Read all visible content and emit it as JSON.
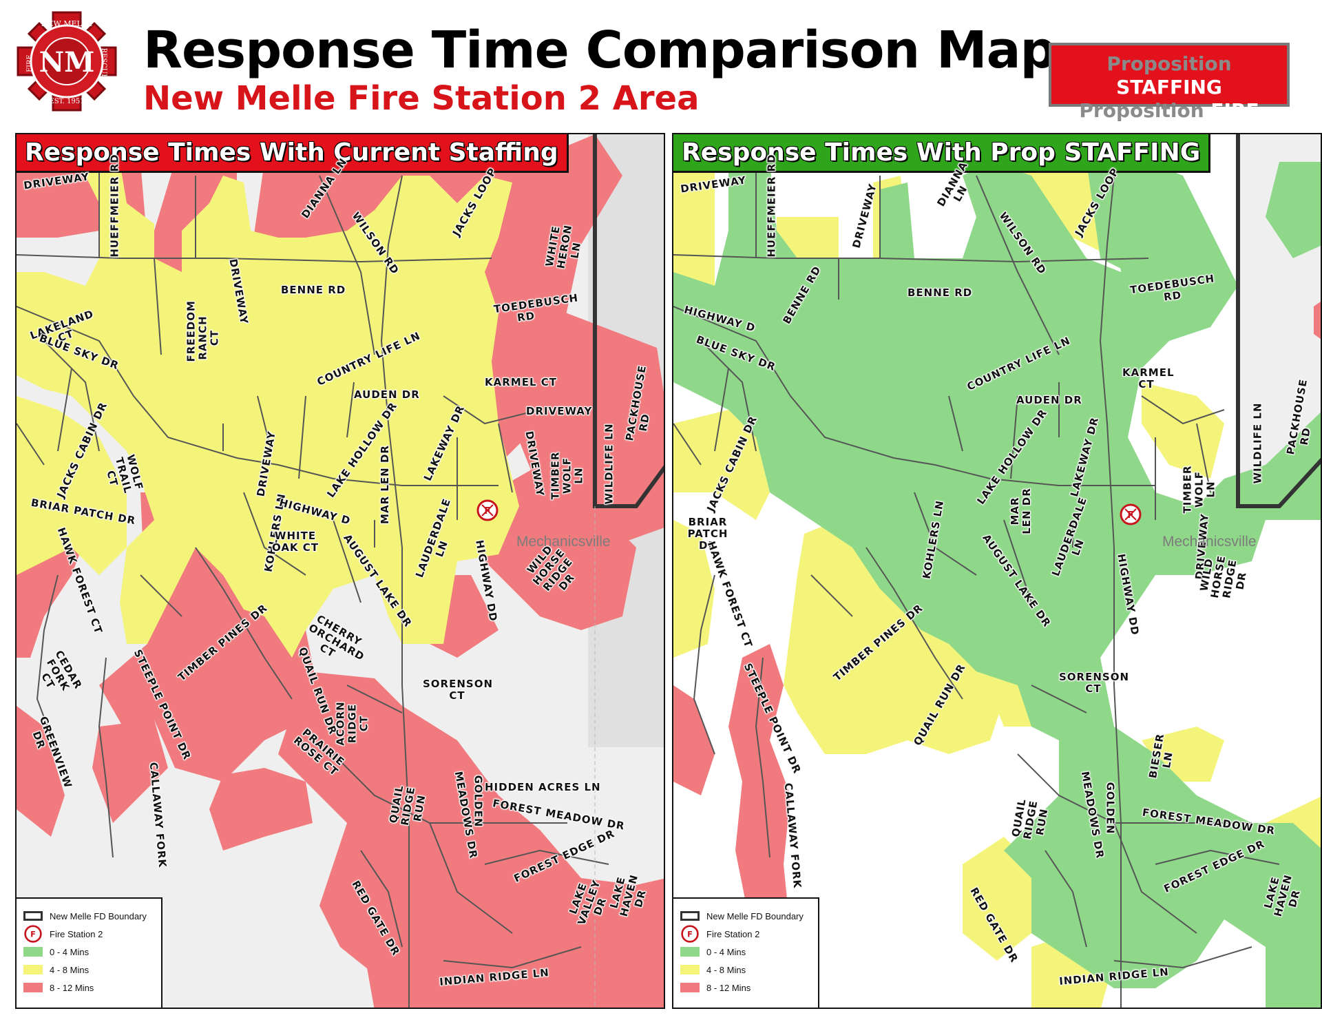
{
  "header": {
    "logo": {
      "top_text": "NEW MELLE",
      "left_text": "FIRE",
      "right_text": "RESCUE",
      "monogram": "NM",
      "bottom_text": "EST. 1951"
    },
    "title": "Response Time Comparison Map",
    "subtitle": "New Melle Fire Station 2 Area",
    "badge": {
      "line1_prefix": "Proposition",
      "line1_emphasis": "STAFFING",
      "line2_prefix": "Proposition",
      "line2_emphasis": "FIRE"
    }
  },
  "colors": {
    "zone_0_4": "#8fd88a",
    "zone_4_8": "#f4f47a",
    "zone_8_12": "#f07a7e",
    "left_header": "#e3111b",
    "right_header": "#2fa51c",
    "road": "#555555",
    "boundary": "#333333"
  },
  "panels": {
    "left": {
      "title": "Response Times With Current Staffing",
      "town_label": "Mechanicsville"
    },
    "right": {
      "title": "Response Times With Prop STAFFING",
      "town_label": "Mechanicsville"
    }
  },
  "streets": {
    "driveway": "DRIVEWAY",
    "hueffmeier": "HUEFFMEIER RD",
    "dianna": "DIANNA LN",
    "jacks_loop": "JACKS LOOP",
    "white_heron": "WHITE HERON LN",
    "wilson": "WILSON RD",
    "benne": "BENNE RD",
    "toedebusch": "TOEDEBUSCH RD",
    "lakeland": "LAKELAND CT",
    "freedom_ranch": "FREEDOM RANCH CT",
    "blue_sky": "BLUE SKY DR",
    "country_life": "COUNTRY LIFE LN",
    "karmel": "KARMEL CT",
    "auden": "AUDEN DR",
    "packhouse": "PACKHOUSE RD",
    "jacks_cabin": "JACKS CABIN DR",
    "wolf_trail": "WOLF TRAIL CT",
    "lake_hollow": "LAKE HOLLOW DR",
    "lakeway": "LAKEWAY DR",
    "timber_wolf": "TIMBER WOLF LN",
    "wildlife": "WILDLIFE LN",
    "briar_patch": "BRIAR PATCH DR",
    "kohlers": "KOHLERS LN",
    "highway_d": "HIGHWAY D",
    "mar_len": "MAR LEN DR",
    "white_oak": "WHITE OAK CT",
    "lauderdale": "LAUDERDALE LN",
    "hawk_forest": "HAWK FOREST CT",
    "august_lake": "AUGUST LAKE DR",
    "highway_dd": "HIGHWAY DD",
    "wild_horse": "WILD HORSE RIDGE DR",
    "timber_pines": "TIMBER PINES DR",
    "cherry_orchard": "CHERRY ORCHARD CT",
    "cedar_fork": "CEDAR FORK CT",
    "quail_run": "QUAIL RUN DR",
    "steeple_point": "STEEPLE POINT DR",
    "sorenson": "SORENSON CT",
    "acorn_ridge": "ACORN RIDGE CT",
    "greenview": "GREENVIEW DR",
    "prairie_rose": "PRAIRIE ROSE CT",
    "hidden_acres": "HIDDEN ACRES LN",
    "callaway_fork": "CALLAWAY FORK",
    "quail_ridge": "QUAIL RIDGE RUN",
    "meadows": "MEADOWS DR",
    "golden": "GOLDEN",
    "forest_meadow": "FOREST MEADOW DR",
    "forest_edge": "FOREST EDGE DR",
    "lake_valley": "LAKE VALLEY DR",
    "lake_haven": "LAKE HAVEN DR",
    "red_gate": "RED GATE DR",
    "indian_ridge": "INDIAN RIDGE LN",
    "bieser": "BIESER LN"
  },
  "legend": {
    "boundary": "New Melle FD Boundary",
    "station": "Fire Station 2",
    "zone_0_4": "0 - 4 Mins",
    "zone_4_8": "4 - 8 Mins",
    "zone_8_12": "8 - 12 Mins"
  }
}
